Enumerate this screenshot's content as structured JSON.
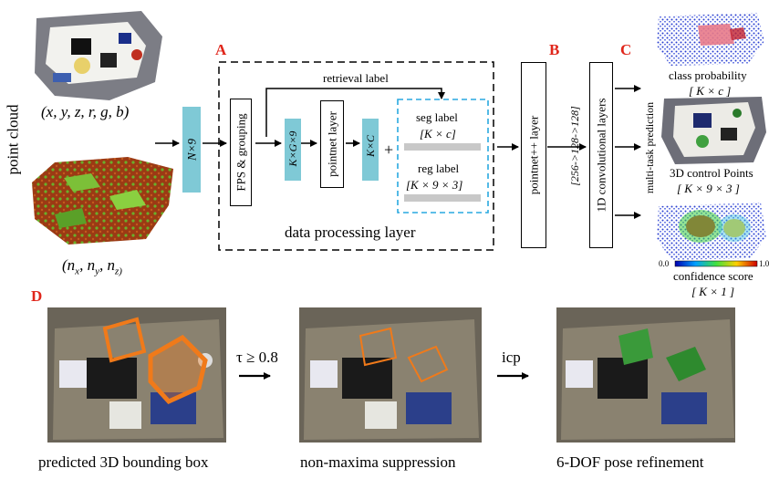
{
  "labels": {
    "A": "A",
    "B": "B",
    "C": "C",
    "D": "D",
    "point_cloud": "point cloud",
    "xyz": "(x, y, z, r, g, b)",
    "normals": "(n",
    "normal_x": "x",
    "normal_sep1": ", n",
    "normal_y": "y",
    "normal_sep2": ", n",
    "normal_z": "z)",
    "n9": "N×9",
    "fps": "FPS & grouping",
    "kg9": "K×G×9",
    "pointnet": "pointnet layer",
    "kc": "K×C",
    "plus": "+",
    "retrieval": "retrieval label",
    "seg_label": "seg label",
    "seg_dim": "[K × c]",
    "reg_label": "reg label",
    "reg_dim": "[K × 9 × 3]",
    "data_layer": "data processing layer",
    "pointnetpp": "pointnet++ layer",
    "conv_dims": "[256->128->128]",
    "conv": "1D convolutional layers",
    "multitask": "multi-task prediction",
    "class_prob": "class probability",
    "class_dim": "[ K × c ]",
    "control_pts": "3D control Points",
    "control_dim": "[ K × 9 × 3 ]",
    "scale_min": "0.0",
    "scale_max": "1.0",
    "confidence": "confidence score",
    "conf_dim": "[ K × 1 ]",
    "tau": "τ ≥ 0.8",
    "icp": "icp",
    "cap1": "predicted 3D bounding box",
    "cap2": "non-maxima suppression",
    "cap3": "6-DOF pose refinement"
  },
  "colors": {
    "accent_red": "#e0261b",
    "teal_block": "#7fc9d6",
    "dashed_blue": "#29a9e0",
    "gray_bar": "#c8c8c8",
    "bbox_orange": "#f07a1a"
  },
  "icons": [
    "arrow-right-icon",
    "colorbar-scale"
  ]
}
